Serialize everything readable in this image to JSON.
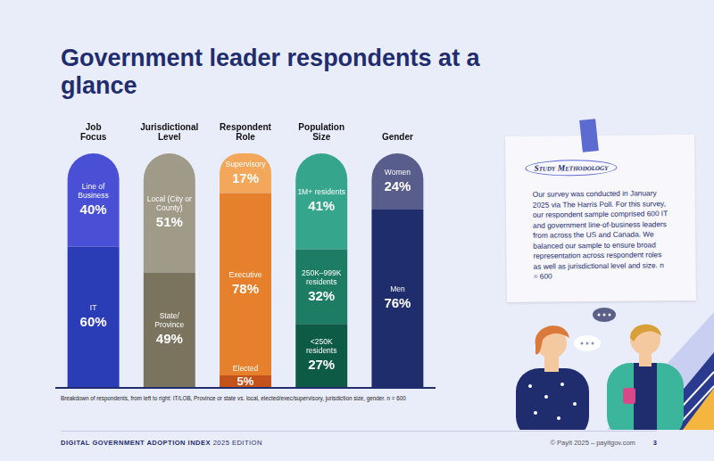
{
  "title": "Government leader respondents at a glance",
  "chart_data": {
    "type": "bar",
    "stacked": true,
    "data_labels": true,
    "tick_labels": "x",
    "grid": false,
    "categories": [
      "Job Focus",
      "Jurisdictional Level",
      "Respondent Role",
      "Population Size",
      "Gender"
    ],
    "ylim": [
      0,
      100
    ],
    "series": [
      {
        "name": "IT",
        "color": "#2b3cb7",
        "values": [
          60,
          null,
          null,
          null,
          null
        ],
        "value_labels": [
          "60%",
          null,
          null,
          null,
          null
        ]
      },
      {
        "name": "Line of Business",
        "color": "#4a50d6",
        "values": [
          40,
          null,
          null,
          null,
          null
        ],
        "value_labels": [
          "40%",
          null,
          null,
          null,
          null
        ]
      },
      {
        "name": "State/Province",
        "color": "#7a735e",
        "values": [
          null,
          49,
          null,
          null,
          null
        ],
        "value_labels": [
          null,
          "49%",
          null,
          null,
          null
        ]
      },
      {
        "name": "Local (City or County)",
        "color": "#a09a88",
        "values": [
          null,
          51,
          null,
          null,
          null
        ],
        "value_labels": [
          null,
          "51%",
          null,
          null,
          null
        ]
      },
      {
        "name": "Elected",
        "color": "#c4531b",
        "values": [
          null,
          null,
          5,
          null,
          null
        ],
        "value_labels": [
          null,
          null,
          "5%",
          null,
          null
        ]
      },
      {
        "name": "Executive",
        "color": "#e6802c",
        "values": [
          null,
          null,
          78,
          null,
          null
        ],
        "value_labels": [
          null,
          null,
          "78%",
          null,
          null
        ]
      },
      {
        "name": "Supervisory",
        "color": "#f2a75a",
        "values": [
          null,
          null,
          17,
          null,
          null
        ],
        "value_labels": [
          null,
          null,
          "17%",
          null,
          null
        ]
      },
      {
        "name": "<250K residents",
        "color": "#0e5b45",
        "values": [
          null,
          null,
          null,
          27,
          null
        ],
        "value_labels": [
          null,
          null,
          null,
          "27%",
          null
        ]
      },
      {
        "name": "250K–999K residents",
        "color": "#1c7c64",
        "values": [
          null,
          null,
          null,
          32,
          null
        ],
        "value_labels": [
          null,
          null,
          null,
          "32%",
          null
        ]
      },
      {
        "name": "1M+ residents",
        "color": "#35a68b",
        "values": [
          null,
          null,
          null,
          41,
          null
        ],
        "value_labels": [
          null,
          null,
          null,
          "41%",
          null
        ]
      },
      {
        "name": "Men",
        "color": "#1f2d6d",
        "values": [
          null,
          null,
          null,
          null,
          76
        ],
        "value_labels": [
          null,
          null,
          null,
          null,
          "76%"
        ]
      },
      {
        "name": "Women",
        "color": "#595d8b",
        "values": [
          null,
          null,
          null,
          null,
          24
        ],
        "value_labels": [
          null,
          null,
          null,
          null,
          "24%"
        ]
      }
    ]
  },
  "note": "Breakdown of respondents, from left to right: IT/LOB, Province or state vs. local, elected/exec/supervisory, jurisdiction size, gender. n = 600",
  "methodology": {
    "title": "Study Methodology",
    "text": "Our survey was conducted in January 2025 via The Harris Poll. For this survey, our respondent sample comprised 600 IT and government line-of-business leaders from across the US and Canada. We balanced our sample to ensure broad representation across respondent roles as well as jurisdictional level and size. n = 600"
  },
  "footer": {
    "publication": "DIGITAL GOVERNMENT ADOPTION INDEX",
    "edition": "2025 EDITION",
    "copyright": "© PayIt 2025 – payitgov.com",
    "page": 3
  }
}
